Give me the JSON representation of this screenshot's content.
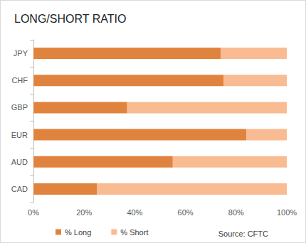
{
  "chart_data": {
    "type": "bar",
    "title": "LONG/SHORT RATIO",
    "annotation": "Source: CFTC",
    "orientation": "horizontal",
    "stacked": true,
    "grid": false,
    "legend": "bottom",
    "categories": [
      "JPY",
      "CHF",
      "GBP",
      "EUR",
      "AUD",
      "CAD"
    ],
    "series": [
      {
        "name": "% Long",
        "color": "#e0833f",
        "values": [
          74,
          75,
          37,
          84,
          55,
          25
        ]
      },
      {
        "name": "% Short",
        "color": "#f9bb92",
        "values": [
          26,
          25,
          63,
          16,
          45,
          75
        ]
      }
    ],
    "xlim": [
      0,
      100
    ],
    "xticks": [
      {
        "value": 0,
        "label": "0%"
      },
      {
        "value": 20,
        "label": "20%"
      },
      {
        "value": 40,
        "label": "40%"
      },
      {
        "value": 60,
        "label": "60%"
      },
      {
        "value": 80,
        "label": "80%"
      },
      {
        "value": 100,
        "label": "100%"
      }
    ]
  }
}
